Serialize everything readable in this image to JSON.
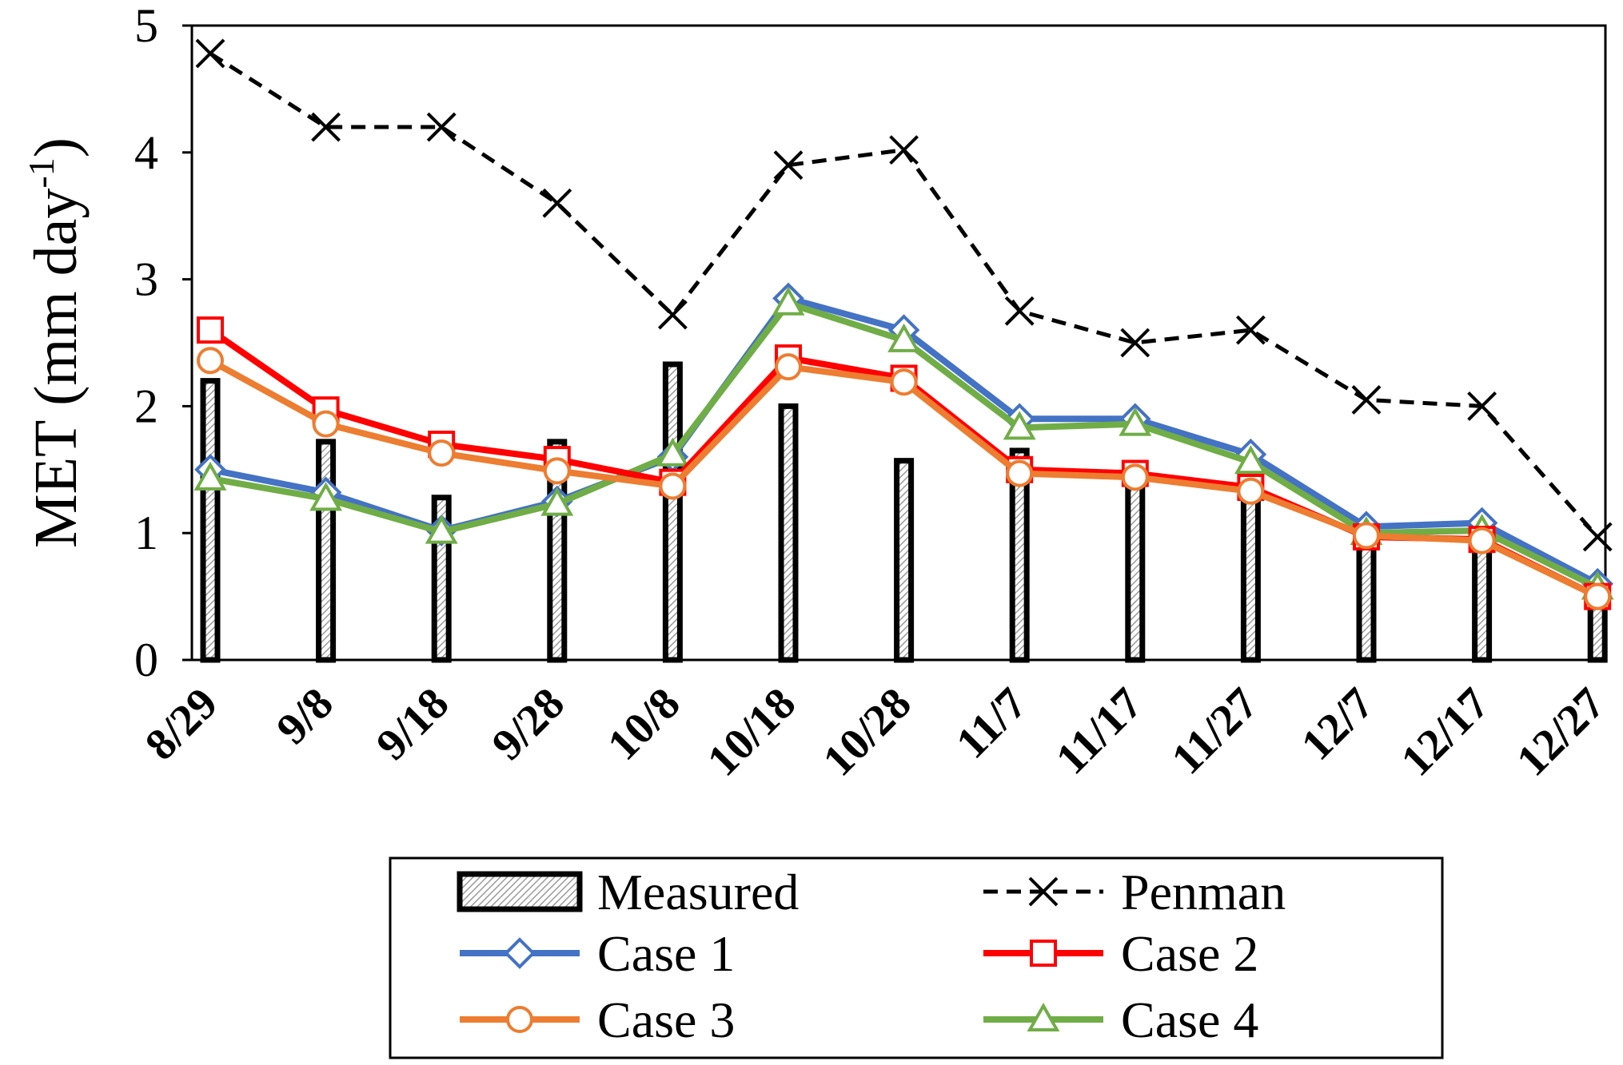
{
  "chart_data": {
    "type": "bar+line",
    "title": "",
    "xlabel": "",
    "ylabel": "MET (mm day",
    "ylabel_superscript": "-1",
    "ylabel_close": ")",
    "ylim": [
      0,
      5
    ],
    "yticks": [
      0,
      1,
      2,
      3,
      4,
      5
    ],
    "grid": false,
    "categories": [
      "8/29",
      "9/8",
      "9/18",
      "9/28",
      "10/8",
      "10/18",
      "10/28",
      "11/7",
      "11/17",
      "11/27",
      "12/7",
      "12/17",
      "12/27"
    ],
    "bars": {
      "name": "Measured",
      "values": [
        2.2,
        1.72,
        1.28,
        1.72,
        2.33,
        2.0,
        1.57,
        1.65,
        1.37,
        1.3,
        1.0,
        0.9,
        0.45
      ]
    },
    "series": [
      {
        "name": "Penman",
        "color": "#000000",
        "marker": "x",
        "dashed": true,
        "values": [
          4.78,
          4.2,
          4.2,
          3.6,
          2.72,
          3.9,
          4.02,
          2.75,
          2.5,
          2.6,
          2.05,
          2.0,
          0.97
        ]
      },
      {
        "name": "Case 1",
        "color": "#4472C4",
        "marker": "diamond",
        "values": [
          1.5,
          1.32,
          1.02,
          1.25,
          1.6,
          2.85,
          2.6,
          1.9,
          1.9,
          1.62,
          1.05,
          1.08,
          0.6
        ]
      },
      {
        "name": "Case 2",
        "color": "#FF0000",
        "marker": "square",
        "values": [
          2.6,
          1.97,
          1.7,
          1.58,
          1.4,
          2.38,
          2.22,
          1.5,
          1.47,
          1.36,
          0.97,
          0.95,
          0.5
        ]
      },
      {
        "name": "Case 3",
        "color": "#ED7D31",
        "marker": "circle",
        "values": [
          2.36,
          1.86,
          1.63,
          1.49,
          1.37,
          2.31,
          2.19,
          1.47,
          1.44,
          1.33,
          0.98,
          0.94,
          0.5
        ]
      },
      {
        "name": "Case 4",
        "color": "#70AD47",
        "marker": "triangle",
        "values": [
          1.43,
          1.27,
          1.01,
          1.23,
          1.62,
          2.81,
          2.52,
          1.83,
          1.86,
          1.56,
          1.0,
          1.02,
          0.57
        ]
      }
    ],
    "legend_position": "bottom"
  }
}
